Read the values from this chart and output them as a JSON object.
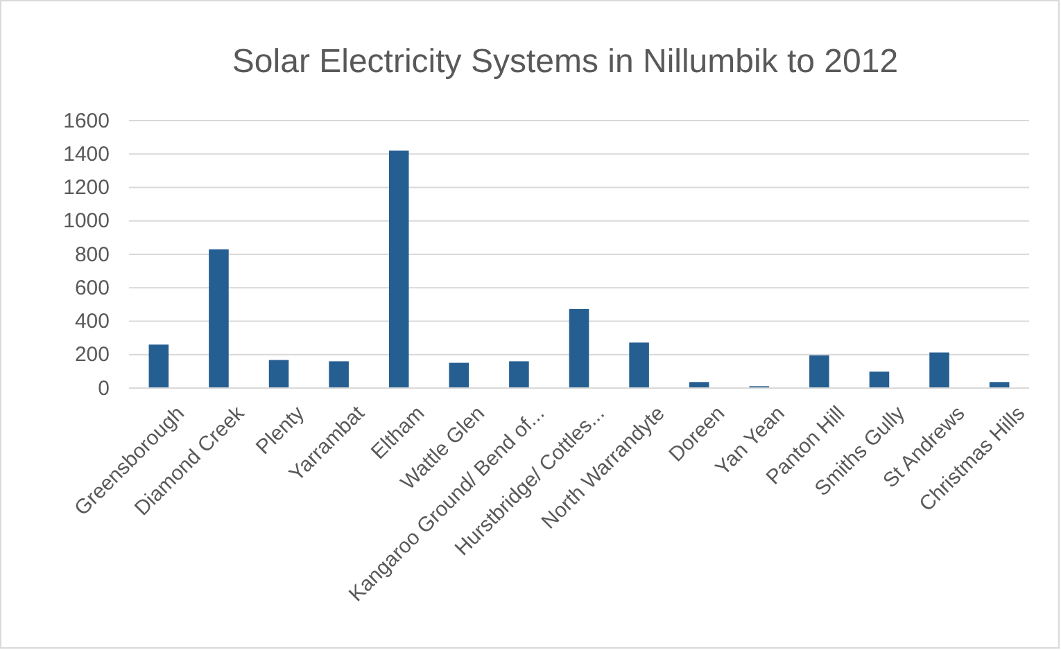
{
  "chart_data": {
    "type": "bar",
    "title": "Solar Electricity Systems in Nillumbik to 2012",
    "categories": [
      "Greensborough",
      "Diamond Creek",
      "Plenty",
      "Yarrambat",
      "Eltham",
      "Wattle Glen",
      "Kangaroo Ground/ Bend of...",
      "Hurstbridge/ Cottles...",
      "North Warrandyte",
      "Doreen",
      "Yan Yean",
      "Panton Hill",
      "Smiths Gully",
      "St Andrews",
      "Christmas Hills"
    ],
    "values": [
      260,
      830,
      168,
      160,
      1420,
      151,
      160,
      473,
      272,
      36,
      11,
      196,
      98,
      213,
      36
    ],
    "color": "#255e91",
    "ylim": [
      0,
      1600
    ],
    "yticks": [
      0,
      200,
      400,
      600,
      800,
      1000,
      1200,
      1400,
      1600
    ],
    "grid": "y"
  }
}
